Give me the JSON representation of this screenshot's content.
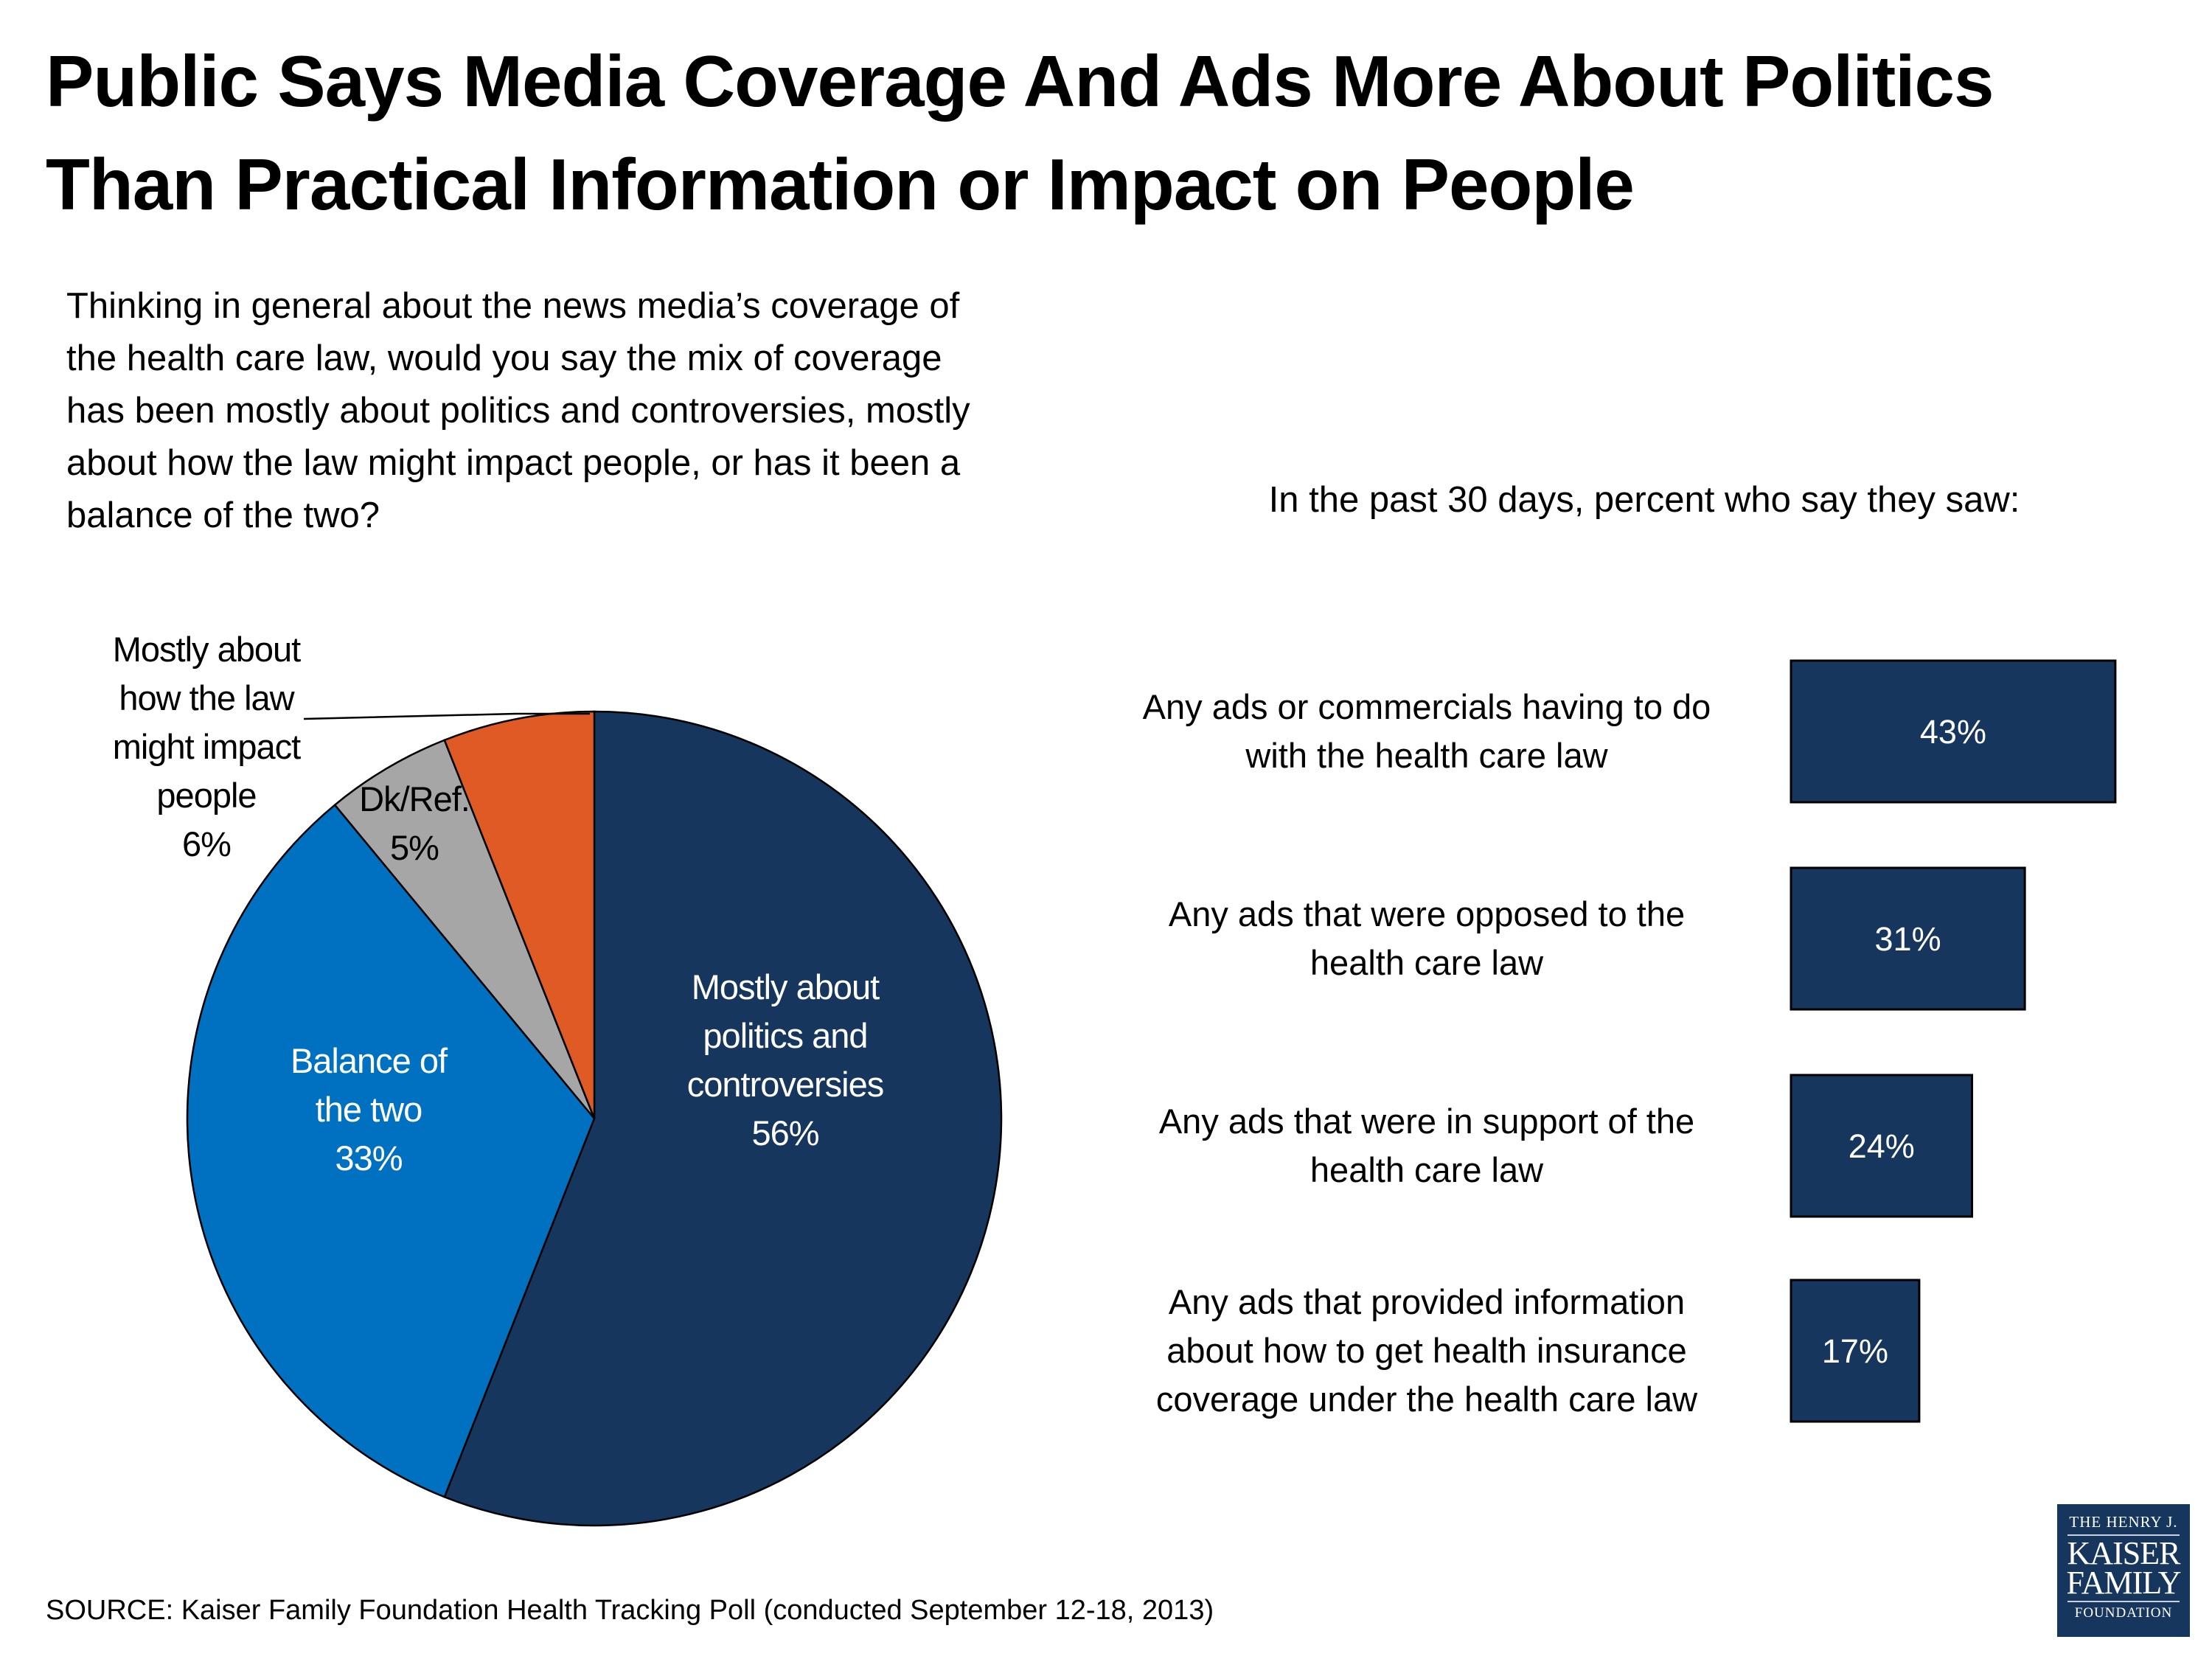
{
  "title": {
    "line1": "Public Says Media Coverage And Ads More About Politics",
    "line2": "Than Practical Information or Impact on People"
  },
  "question": {
    "lines": [
      "Thinking in general about the news media’s coverage of",
      "the health care law, would you say the mix of coverage",
      "has been mostly about politics and controversies, mostly",
      "about how the law might impact people, or has it been a",
      "balance of the two?"
    ]
  },
  "subtitle": "In the past 30 days, percent who say they saw:",
  "source": "SOURCE: Kaiser Family Foundation Health Tracking Poll (conducted September 12-18, 2013)",
  "logo": {
    "line1": "THE HENRY J.",
    "line2": "KAISER",
    "line3": "FAMILY",
    "line4": "FOUNDATION"
  },
  "colors": {
    "navy": "#17365d",
    "blue": "#0070c0",
    "gray": "#a6a6a6",
    "orange": "#e05a26"
  },
  "chart_data": [
    {
      "type": "pie",
      "title": "",
      "start": "12 o'clock, clockwise",
      "slices": [
        {
          "label": "Mostly about politics and controversies",
          "label_lines": [
            "Mostly about",
            "politics and",
            "controversies",
            "56%"
          ],
          "value": 56,
          "color": "#17365d",
          "label_color": "#ffffff"
        },
        {
          "label": "Balance of the two",
          "label_lines": [
            "Balance of",
            "the two",
            "33%"
          ],
          "value": 33,
          "color": "#0070c0",
          "label_color": "#ffffff"
        },
        {
          "label": "Dk/Ref.",
          "label_lines": [
            "Dk/Ref.",
            "5%"
          ],
          "value": 5,
          "color": "#a6a6a6",
          "label_color": "#000000"
        },
        {
          "label": "Mostly about how the law might impact people",
          "label_lines": [
            "Mostly about",
            "how the law",
            "might impact",
            "people",
            "6%"
          ],
          "value": 6,
          "color": "#e05a26",
          "label_color": "#000000",
          "leader_line": true
        }
      ]
    },
    {
      "type": "bar",
      "orientation": "horizontal",
      "title": "In the past 30 days, percent who say they saw:",
      "categories": [
        [
          "Any ads or commercials having to do",
          "with the health care law"
        ],
        [
          "Any ads that were opposed to the",
          "health care law"
        ],
        [
          "Any ads that were in support of the",
          "health care law"
        ],
        [
          "Any ads that provided information",
          "about how to get health insurance",
          "coverage under the health care law"
        ]
      ],
      "values": [
        43,
        31,
        24,
        17
      ],
      "value_labels": [
        "43%",
        "31%",
        "24%",
        "17%"
      ],
      "color": "#17365d",
      "xlabel": "",
      "ylabel": "",
      "axes_visible": false,
      "grid": false
    }
  ]
}
